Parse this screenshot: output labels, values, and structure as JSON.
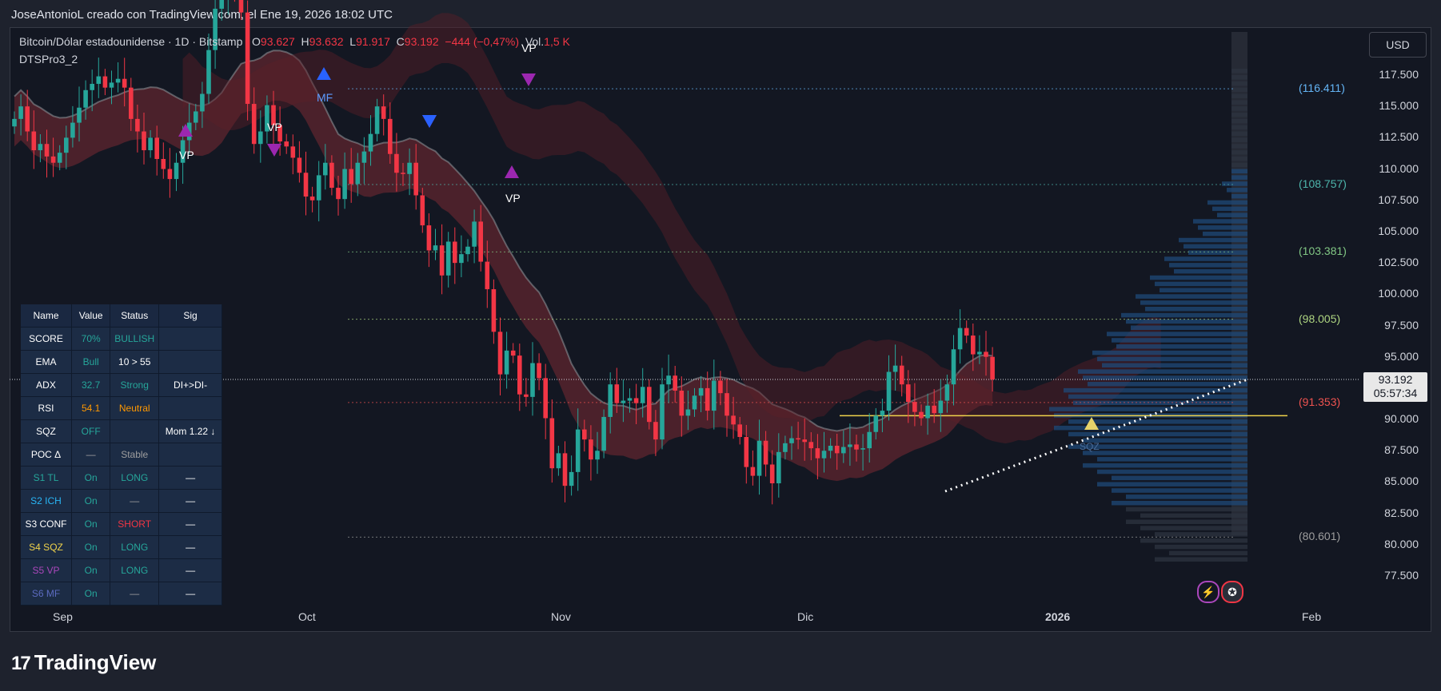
{
  "credit": "JoseAntonioL creado con TradingView.com, el Ene 19, 2026 18:02 UTC",
  "legend": {
    "symbol": "Bitcoin/Dólar estadounidense · 1D · Bitstamp",
    "o_label": "O",
    "o": "93.627",
    "h_label": "H",
    "h": "93.632",
    "l_label": "L",
    "l": "91.917",
    "c_label": "C",
    "c": "93.192",
    "change": "−444 (−0,47%)",
    "vol_label": "Vol.",
    "vol": "1,5 K",
    "indicator": "DTSPro3_2"
  },
  "currency": "USD",
  "last_price": {
    "price": "93.192",
    "countdown": "05:57:34"
  },
  "colors": {
    "up": "#26a69a",
    "down": "#f23645",
    "bg": "#131722",
    "poc": "#f0d34b"
  },
  "chart_data": {
    "type": "candlestick",
    "y_ticks": [
      "117.500",
      "115.000",
      "112.500",
      "110.000",
      "107.500",
      "105.000",
      "102.500",
      "100.000",
      "97.500",
      "95.000",
      "92.500",
      "90.000",
      "87.500",
      "85.000",
      "82.500",
      "80.000",
      "77.500"
    ],
    "y_tick_values": [
      117500,
      115000,
      112500,
      110000,
      107500,
      105000,
      102500,
      100000,
      97500,
      95000,
      92500,
      90000,
      87500,
      85000,
      82500,
      80000,
      77500
    ],
    "x_ticks": [
      "Sep",
      "Oct",
      "Nov",
      "Dic",
      "2026",
      "Feb"
    ],
    "levels": [
      {
        "label": "(116.411)",
        "value": 116411,
        "color": "#64b5f6"
      },
      {
        "label": "(108.757)",
        "value": 108757,
        "color": "#4db6ac"
      },
      {
        "label": "(103.381)",
        "value": 103381,
        "color": "#81c784"
      },
      {
        "label": "(98.005)",
        "value": 98005,
        "color": "#aed581"
      },
      {
        "label": "(91.353)",
        "value": 91353,
        "color": "#ef5350"
      },
      {
        "label": "(80.601)",
        "value": 80601,
        "color": "#9e9e9e"
      }
    ],
    "poc_value": 90300,
    "closes": [
      114000,
      115000,
      113000,
      111500,
      112000,
      111000,
      110500,
      111300,
      112500,
      113700,
      114900,
      116300,
      116800,
      117400,
      116500,
      116900,
      117200,
      116500,
      114000,
      113000,
      111500,
      112500,
      110800,
      110000,
      109200,
      110500,
      112300,
      113700,
      114600,
      116000,
      119500,
      122800,
      124000,
      126200,
      124500,
      122500,
      115200,
      112000,
      113000,
      115100,
      113500,
      112200,
      111800,
      110900,
      109700,
      107800,
      107500,
      109500,
      110500,
      108500,
      107600,
      110000,
      108800,
      110500,
      111400,
      112800,
      115000,
      114000,
      111200,
      109700,
      109600,
      110500,
      107900,
      105500,
      103500,
      103900,
      101500,
      104200,
      102500,
      103200,
      103800,
      105800,
      102600,
      100400,
      97000,
      93600,
      95500,
      95100,
      92000,
      91800,
      94500,
      93300,
      90100,
      86100,
      87300,
      84700,
      85800,
      89200,
      88400,
      86800,
      87500,
      90200,
      92800,
      91300,
      91500,
      91700,
      91300,
      92600,
      89800,
      88400,
      92800,
      93500,
      92300,
      90300,
      90800,
      91900,
      92500,
      90700,
      93100,
      92100,
      90300,
      89600,
      88600,
      86200,
      85500,
      88300,
      86400,
      84900,
      87400,
      88100,
      88500,
      88400,
      88200,
      87700,
      86900,
      87500,
      87900,
      87300,
      87800,
      88000,
      87600,
      87700,
      89000,
      90300,
      90700,
      93800,
      94300,
      92800,
      91400,
      90600,
      90100,
      91100,
      90500,
      91500,
      92800,
      95600,
      97300,
      96700,
      95200,
      95400,
      95000,
      93192
    ]
  },
  "table": {
    "headers": [
      "Name",
      "Value",
      "Status",
      "Sig"
    ],
    "rows": [
      {
        "name": "SCORE",
        "name_color": "#ffffff",
        "value": "70%",
        "value_color": "#26a69a",
        "status": "BULLISH",
        "status_color": "#26a69a",
        "sig": ""
      },
      {
        "name": "EMA",
        "name_color": "#ffffff",
        "value": "Bull",
        "value_color": "#26a69a",
        "status": "10 > 55",
        "status_color": "#ffffff",
        "sig": ""
      },
      {
        "name": "ADX",
        "name_color": "#ffffff",
        "value": "32.7",
        "value_color": "#26a69a",
        "status": "Strong",
        "status_color": "#26a69a",
        "sig": "DI+>DI-"
      },
      {
        "name": "RSI",
        "name_color": "#ffffff",
        "value": "54.1",
        "value_color": "#ff9800",
        "status": "Neutral",
        "status_color": "#ff9800",
        "sig": ""
      },
      {
        "name": "SQZ",
        "name_color": "#ffffff",
        "value": "OFF",
        "value_color": "#26a69a",
        "status": "",
        "status_color": "#ffffff",
        "sig": "Mom 1.22 ↓"
      },
      {
        "name": "POC Δ",
        "name_color": "#ffffff",
        "value": "—",
        "value_color": "#9e9e9e",
        "status": "Stable",
        "status_color": "#9e9e9e",
        "sig": ""
      },
      {
        "name": "S1 TL",
        "name_color": "#26a69a",
        "value": "On",
        "value_color": "#26a69a",
        "status": "LONG",
        "status_color": "#26a69a",
        "sig": "—"
      },
      {
        "name": "S2 ICH",
        "name_color": "#29b6f6",
        "value": "On",
        "value_color": "#26a69a",
        "status": "—",
        "status_color": "#9e9e9e",
        "sig": "—"
      },
      {
        "name": "S3 CONF",
        "name_color": "#ffffff",
        "value": "On",
        "value_color": "#26a69a",
        "status": "SHORT",
        "status_color": "#f23645",
        "sig": "—"
      },
      {
        "name": "S4 SQZ",
        "name_color": "#f0d34b",
        "value": "On",
        "value_color": "#26a69a",
        "status": "LONG",
        "status_color": "#26a69a",
        "sig": "—"
      },
      {
        "name": "S5 VP",
        "name_color": "#ab47bc",
        "value": "On",
        "value_color": "#26a69a",
        "status": "LONG",
        "status_color": "#26a69a",
        "sig": "—"
      },
      {
        "name": "S6 MF",
        "name_color": "#5c6bc0",
        "value": "On",
        "value_color": "#26a69a",
        "status": "—",
        "status_color": "#9e9e9e",
        "sig": "—"
      }
    ]
  },
  "markers": {
    "vp": "VP",
    "mf": "MF",
    "sqz": "SQZ"
  },
  "branding": "TradingView"
}
